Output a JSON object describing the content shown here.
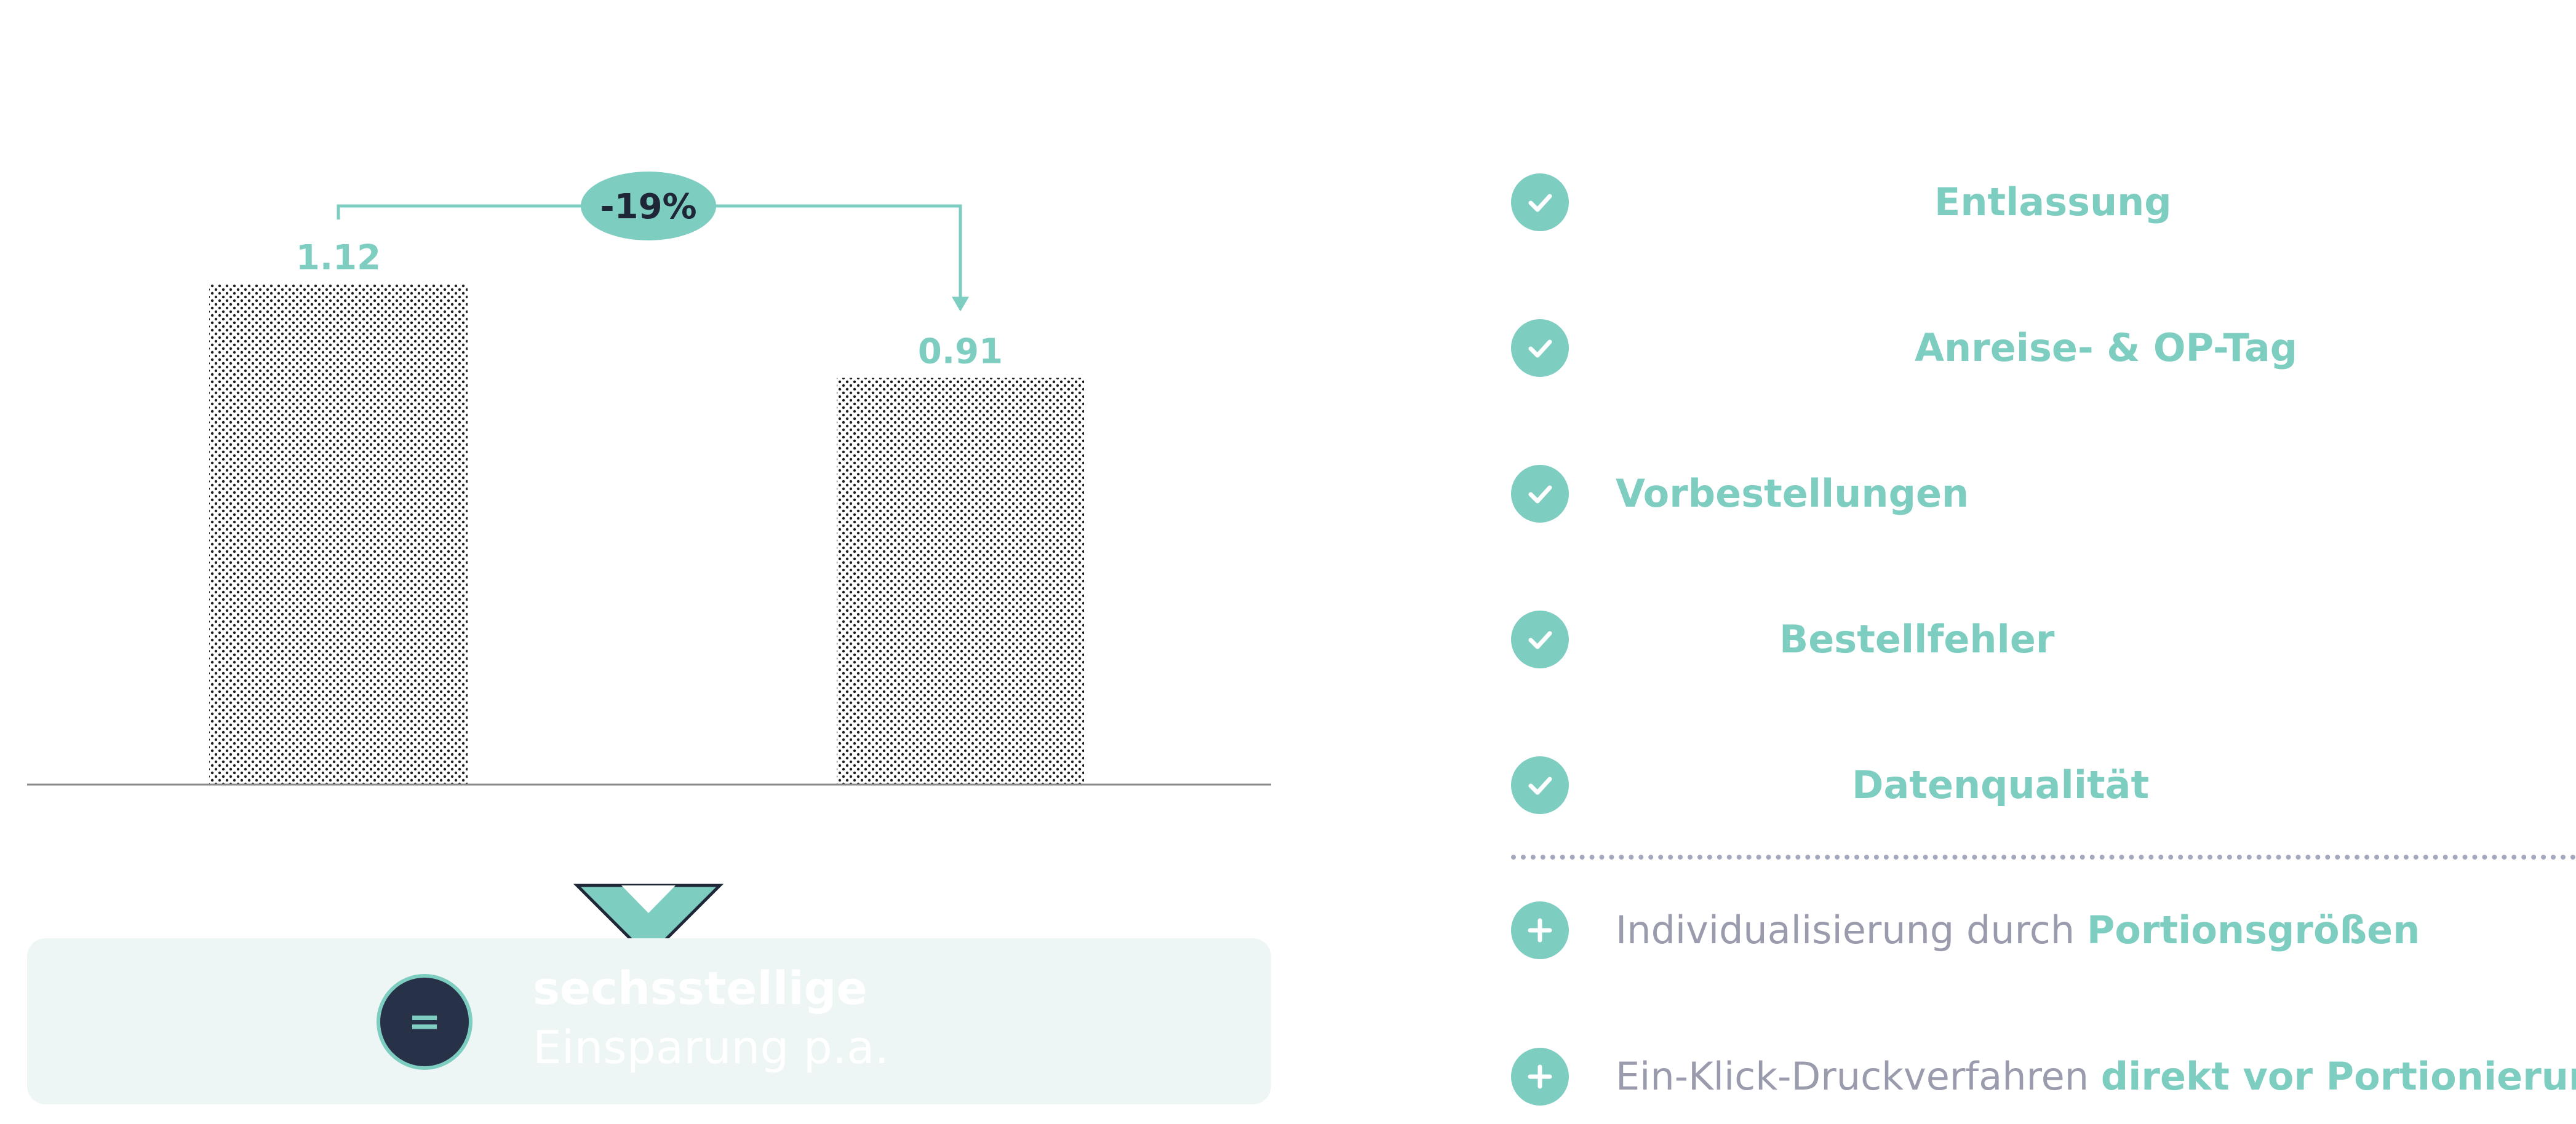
{
  "chart_data": {
    "type": "bar",
    "categories": [
      "",
      ""
    ],
    "values": [
      1.12,
      0.91
    ],
    "data_labels": [
      "1.12",
      "0.91"
    ],
    "change_label": "-19%",
    "ylim": [
      0,
      1.12
    ],
    "grid": false,
    "legend": "none",
    "colors": {
      "accent": "#7ecdc1",
      "dark": "#1f2638",
      "bar_pattern": "#1e1e1e",
      "baseline": "#8a8a8a"
    }
  },
  "banner": {
    "badge_symbol": "=",
    "line1": "sechsstellige",
    "line2": "Einsparung p.a."
  },
  "checklist": [
    {
      "icon": "check-circle-icon",
      "label": "Entlassung"
    },
    {
      "icon": "check-circle-icon",
      "label": "Anreise- & OP-Tag"
    },
    {
      "icon": "check-circle-icon",
      "label": "Vorbestellungen"
    },
    {
      "icon": "check-circle-icon",
      "label": "Bestellfehler"
    },
    {
      "icon": "check-circle-icon",
      "label": "Datenqualität"
    }
  ],
  "extras": [
    {
      "icon": "plus-circle-icon",
      "prefix": "Individualisierung durch",
      "highlight": "Portionsgrößen"
    },
    {
      "icon": "plus-circle-icon",
      "prefix": "Ein-Klick-Druckverfahren",
      "highlight": "direkt vor Portionierung"
    }
  ]
}
